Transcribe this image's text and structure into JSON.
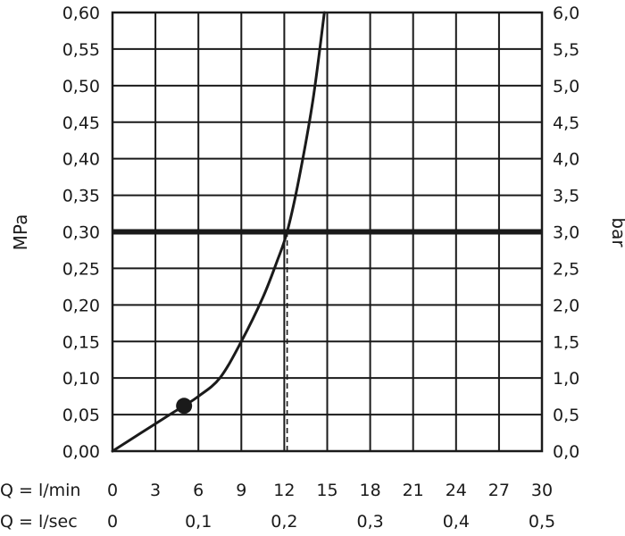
{
  "chart_data": {
    "type": "line",
    "xlabel": "Q = l/min",
    "xlabel_secondary": "Q = l/sec",
    "ylabel": "MPa",
    "ylabel_right": "bar",
    "xlim": [
      0,
      30
    ],
    "ylim": [
      0,
      0.6
    ],
    "grid": true,
    "x_ticks": [
      0,
      3,
      6,
      9,
      12,
      15,
      18,
      21,
      24,
      27,
      30
    ],
    "x_tick_labels": [
      "0",
      "3",
      "6",
      "9",
      "12",
      "15",
      "18",
      "21",
      "24",
      "27",
      "30"
    ],
    "x_secondary_ticks": [
      0,
      6,
      12,
      18,
      24,
      30
    ],
    "x_secondary_tick_labels": [
      "0",
      "0,1",
      "0,2",
      "0,3",
      "0,4",
      "0,5"
    ],
    "y_ticks": [
      0,
      0.05,
      0.1,
      0.15,
      0.2,
      0.25,
      0.3,
      0.35,
      0.4,
      0.45,
      0.5,
      0.55,
      0.6
    ],
    "y_tick_labels": [
      "0,00",
      "0,05",
      "0,10",
      "0,15",
      "0,20",
      "0,25",
      "0,30",
      "0,35",
      "0,40",
      "0,45",
      "0,50",
      "0,55",
      "0,60"
    ],
    "y_right_tick_labels": [
      "0,0",
      "0,5",
      "1,0",
      "1,5",
      "2,0",
      "2,5",
      "3,0",
      "3,5",
      "4,0",
      "4,5",
      "5,0",
      "5,5",
      "6,0"
    ],
    "series": [
      {
        "x": [
          0,
          2,
          4,
          5,
          6,
          7.5,
          9,
          10.5,
          11.5,
          12.2,
          13,
          14,
          14.8
        ],
        "y": [
          0,
          0.025,
          0.05,
          0.062,
          0.075,
          0.1,
          0.15,
          0.21,
          0.26,
          0.3,
          0.37,
          0.48,
          0.6
        ]
      }
    ],
    "reference_line": {
      "y": 0.3
    },
    "marked_point": {
      "x": 5,
      "y": 0.062
    },
    "drop_line": {
      "x": 12.2,
      "from_y": 0,
      "to_y": 0.3
    }
  }
}
